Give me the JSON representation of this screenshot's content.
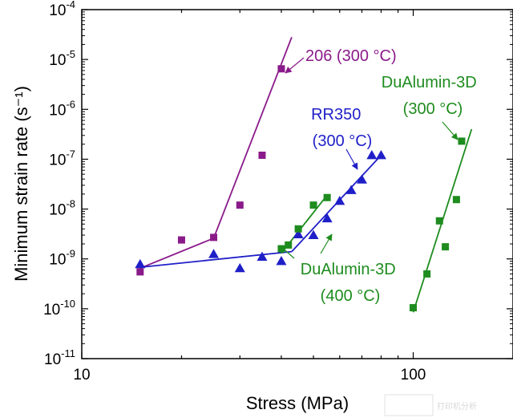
{
  "chart_data": {
    "type": "scatter",
    "x_scale": "log",
    "y_scale": "log",
    "xlim": [
      10,
      200
    ],
    "ylim": [
      1e-11,
      0.0001
    ],
    "xlabel": "Stress (MPa)",
    "ylabel": "Minimum strain rate (s⁻¹)",
    "x_ticks": [
      {
        "value": 10,
        "label": "10"
      },
      {
        "value": 100,
        "label": "100"
      }
    ],
    "y_ticks": [
      {
        "value": 1e-11,
        "base": "10",
        "exp": "-11"
      },
      {
        "value": 1e-10,
        "base": "10",
        "exp": "-10"
      },
      {
        "value": 1e-09,
        "base": "10",
        "exp": "-9"
      },
      {
        "value": 1e-08,
        "base": "10",
        "exp": "-8"
      },
      {
        "value": 1e-07,
        "base": "10",
        "exp": "-7"
      },
      {
        "value": 1e-06,
        "base": "10",
        "exp": "-6"
      },
      {
        "value": 1e-05,
        "base": "10",
        "exp": "-5"
      },
      {
        "value": 0.0001,
        "base": "10",
        "exp": "-4"
      }
    ],
    "grid": false,
    "legend": "none",
    "series": [
      {
        "name": "206 (300 °C)",
        "color": "#8a1a8a",
        "marker": "square",
        "points": [
          [
            15,
            5.5e-10
          ],
          [
            20,
            2.4e-09
          ],
          [
            25,
            2.7e-09
          ],
          [
            30,
            1.2e-08
          ],
          [
            35,
            1.2e-07
          ],
          [
            40,
            6.5e-06
          ]
        ],
        "fit": [
          [
            [
              15,
              6.5e-10
            ],
            [
              25,
              2.6e-09
            ]
          ],
          [
            [
              25,
              2.6e-09
            ],
            [
              43,
              2.8e-05
            ]
          ]
        ]
      },
      {
        "name": "RR350 (300 °C)",
        "color": "#1f1fc8",
        "marker": "triangle",
        "points": [
          [
            15,
            7.8e-10
          ],
          [
            25,
            1.25e-09
          ],
          [
            30,
            6.5e-10
          ],
          [
            35,
            1.1e-09
          ],
          [
            40,
            9e-10
          ],
          [
            45,
            3.1e-09
          ],
          [
            50,
            3e-09
          ],
          [
            55,
            6.5e-09
          ],
          [
            60,
            1.45e-08
          ],
          [
            65,
            2.4e-08
          ],
          [
            70,
            3.9e-08
          ],
          [
            75,
            1.2e-07
          ],
          [
            80,
            1.2e-07
          ]
        ],
        "fit": [
          [
            [
              15,
              6.8e-10
            ],
            [
              43,
              1.4e-09
            ]
          ],
          [
            [
              43,
              1.4e-09
            ],
            [
              80,
              1.2e-07
            ]
          ]
        ]
      },
      {
        "name": "DuAlumin-3D (400 °C)",
        "color": "#1e8c1e",
        "marker": "square",
        "points": [
          [
            40,
            1.6e-09
          ],
          [
            42,
            1.9e-09
          ],
          [
            45,
            4e-09
          ],
          [
            50,
            1.2e-08
          ],
          [
            55,
            1.7e-08
          ]
        ],
        "fit": [
          [
            [
              40,
              1.3e-09
            ],
            [
              55,
              1.9e-08
            ]
          ]
        ]
      },
      {
        "name": "DuAlumin-3D (300 °C)",
        "color": "#1e8c1e",
        "marker": "square",
        "points": [
          [
            100,
            1.05e-10
          ],
          [
            110,
            5e-10
          ],
          [
            120,
            5.8e-09
          ],
          [
            125,
            1.75e-09
          ],
          [
            135,
            1.55e-08
          ],
          [
            140,
            2.3e-07
          ]
        ],
        "fit": [
          [
            [
              100,
              8.5e-11
            ],
            [
              150,
              4e-07
            ]
          ]
        ]
      }
    ],
    "annotations": [
      {
        "id": "a206",
        "lines": [
          "206 (300 °C)"
        ],
        "color": "#8a1a8a"
      },
      {
        "id": "arr350",
        "lines": [
          "RR350",
          "(300 °C)"
        ],
        "color": "#1f1fc8"
      },
      {
        "id": "adu300",
        "lines": [
          "DuAlumin-3D",
          "(300 °C)"
        ],
        "color": "#1e8c1e"
      },
      {
        "id": "adu400",
        "lines": [
          "DuAlumin-3D",
          "(400 °C)"
        ],
        "color": "#1e8c1e"
      }
    ]
  },
  "watermark": "打印机分析"
}
